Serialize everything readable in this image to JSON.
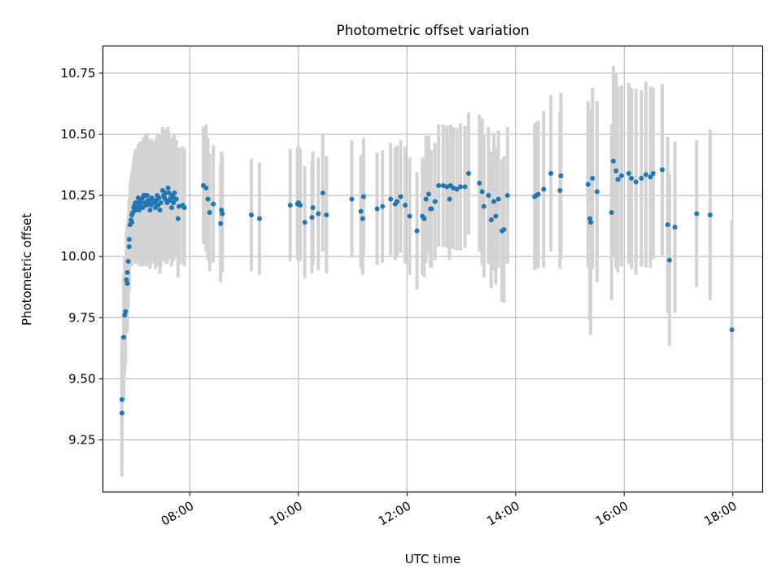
{
  "chart_data": {
    "type": "scatter",
    "title": "Photometric offset variation",
    "xlabel": "UTC time",
    "ylabel": "Photometric offset",
    "xlim": [
      "06:24",
      "18:33"
    ],
    "ylim": [
      9.037,
      10.861
    ],
    "x_ticks": [
      "08:00",
      "10:00",
      "12:00",
      "14:00",
      "16:00",
      "18:00"
    ],
    "y_ticks": [
      "9.25",
      "9.50",
      "9.75",
      "10.00",
      "10.25",
      "10.50",
      "10.75"
    ],
    "grid": true,
    "colors": {
      "marker": "#1f77b4",
      "errorbar": "#d3d3d3",
      "grid": "#b0b0b0"
    },
    "series": [
      {
        "x": [
          "06:45",
          "06:45",
          "06:47",
          "06:48",
          "06:49",
          "06:50",
          "06:51",
          "06:51",
          "06:52",
          "06:53",
          "06:53",
          "06:54",
          "06:55",
          "06:56",
          "06:56",
          "06:57",
          "06:58",
          "06:59",
          "07:00",
          "07:00",
          "07:01",
          "07:02",
          "07:03",
          "07:04",
          "07:04",
          "07:05",
          "07:06",
          "07:07",
          "07:08",
          "07:08",
          "07:09",
          "07:10",
          "07:11",
          "07:12",
          "07:13",
          "07:14",
          "07:15",
          "07:16",
          "07:17",
          "07:18",
          "07:19",
          "07:21",
          "07:22",
          "07:23",
          "07:24",
          "07:25",
          "07:26",
          "07:27",
          "07:28",
          "07:30",
          "07:31",
          "07:32",
          "07:33",
          "07:34",
          "07:35",
          "07:36",
          "07:37",
          "07:38",
          "07:39",
          "07:40",
          "07:41",
          "07:42",
          "07:42",
          "07:43",
          "07:45",
          "07:47",
          "07:48",
          "07:52",
          "07:54",
          "08:15",
          "08:18",
          "08:20",
          "08:22",
          "08:26",
          "08:34",
          "08:35",
          "08:36",
          "09:08",
          "09:17",
          "09:51",
          "10:00",
          "09:59",
          "10:02",
          "10:07",
          "10:15",
          "10:16",
          "10:22",
          "10:27",
          "10:31",
          "10:59",
          "11:09",
          "11:11",
          "11:12",
          "11:27",
          "11:33",
          "11:42",
          "11:47",
          "11:49",
          "11:53",
          "11:58",
          "12:03",
          "12:11",
          "12:17",
          "12:19",
          "12:21",
          "12:24",
          "12:26",
          "12:27",
          "12:31",
          "12:35",
          "12:40",
          "12:44",
          "12:47",
          "12:48",
          "12:51",
          "12:55",
          "12:59",
          "13:04",
          "13:08",
          "13:20",
          "13:23",
          "13:25",
          "13:30",
          "13:33",
          "13:36",
          "13:38",
          "13:41",
          "13:45",
          "13:47",
          "13:51",
          "14:21",
          "14:23",
          "14:25",
          "14:31",
          "14:39",
          "14:49",
          "14:50",
          "15:20",
          "15:22",
          "15:23",
          "15:25",
          "15:30",
          "15:46",
          "15:48",
          "15:51",
          "15:53",
          "15:57",
          "16:05",
          "16:08",
          "16:13",
          "16:19",
          "16:24",
          "16:29",
          "16:32",
          "16:42",
          "16:48",
          "16:50",
          "16:56",
          "17:20",
          "17:35",
          "17:59"
        ],
        "y": [
          9.415,
          9.36,
          9.67,
          9.76,
          9.775,
          9.905,
          9.89,
          9.935,
          9.98,
          10.04,
          10.07,
          10.13,
          10.15,
          10.17,
          10.14,
          10.18,
          10.2,
          10.21,
          10.19,
          10.22,
          10.2,
          10.22,
          10.24,
          10.21,
          10.19,
          10.23,
          10.2,
          10.22,
          10.24,
          10.2,
          10.25,
          10.22,
          10.25,
          10.21,
          10.25,
          10.23,
          10.22,
          10.19,
          10.21,
          10.24,
          10.23,
          10.22,
          10.2,
          10.23,
          10.25,
          10.21,
          10.24,
          10.19,
          10.22,
          10.27,
          10.25,
          10.24,
          10.26,
          10.23,
          10.22,
          10.28,
          10.26,
          10.23,
          10.24,
          10.2,
          10.25,
          10.22,
          10.24,
          10.26,
          10.235,
          10.155,
          10.205,
          10.21,
          10.2,
          10.29,
          10.28,
          10.235,
          10.18,
          10.215,
          10.135,
          10.19,
          10.175,
          10.17,
          10.155,
          10.21,
          10.22,
          10.215,
          10.21,
          10.14,
          10.16,
          10.2,
          10.175,
          10.26,
          10.17,
          10.235,
          10.185,
          10.155,
          10.245,
          10.195,
          10.205,
          10.235,
          10.215,
          10.225,
          10.245,
          10.21,
          10.165,
          10.105,
          10.165,
          10.155,
          10.235,
          10.255,
          10.195,
          10.195,
          10.225,
          10.29,
          10.29,
          10.285,
          10.235,
          10.29,
          10.28,
          10.275,
          10.285,
          10.285,
          10.34,
          10.3,
          10.265,
          10.205,
          10.25,
          10.15,
          10.225,
          10.165,
          10.235,
          10.105,
          10.11,
          10.25,
          10.245,
          10.25,
          10.255,
          10.275,
          10.34,
          10.27,
          10.33,
          10.295,
          10.155,
          10.14,
          10.32,
          10.265,
          10.18,
          10.39,
          10.35,
          10.315,
          10.33,
          10.34,
          10.32,
          10.305,
          10.32,
          10.335,
          10.325,
          10.34,
          10.355,
          10.13,
          9.985,
          10.12,
          10.175,
          10.17,
          9.7
        ],
        "err": [
          0.26,
          0.26,
          0.26,
          0.24,
          0.22,
          0.2,
          0.2,
          0.2,
          0.19,
          0.18,
          0.17,
          0.17,
          0.17,
          0.18,
          0.18,
          0.19,
          0.2,
          0.21,
          0.22,
          0.22,
          0.22,
          0.22,
          0.22,
          0.23,
          0.23,
          0.24,
          0.24,
          0.24,
          0.24,
          0.24,
          0.24,
          0.25,
          0.25,
          0.25,
          0.25,
          0.25,
          0.25,
          0.24,
          0.24,
          0.24,
          0.24,
          0.25,
          0.25,
          0.25,
          0.25,
          0.25,
          0.26,
          0.26,
          0.26,
          0.26,
          0.26,
          0.26,
          0.26,
          0.26,
          0.25,
          0.25,
          0.25,
          0.24,
          0.24,
          0.24,
          0.24,
          0.24,
          0.24,
          0.24,
          0.24,
          0.24,
          0.24,
          0.24,
          0.24,
          0.24,
          0.26,
          0.25,
          0.24,
          0.24,
          0.24,
          0.24,
          0.24,
          0.23,
          0.23,
          0.23,
          0.23,
          0.23,
          0.23,
          0.23,
          0.23,
          0.23,
          0.23,
          0.24,
          0.24,
          0.24,
          0.23,
          0.23,
          0.24,
          0.23,
          0.23,
          0.23,
          0.23,
          0.23,
          0.23,
          0.24,
          0.24,
          0.24,
          0.24,
          0.24,
          0.26,
          0.24,
          0.24,
          0.24,
          0.24,
          0.25,
          0.25,
          0.25,
          0.25,
          0.25,
          0.25,
          0.25,
          0.26,
          0.25,
          0.25,
          0.28,
          0.3,
          0.29,
          0.28,
          0.28,
          0.28,
          0.28,
          0.28,
          0.29,
          0.3,
          0.28,
          0.3,
          0.3,
          0.3,
          0.32,
          0.32,
          0.32,
          0.34,
          0.34,
          0.42,
          0.46,
          0.37,
          0.37,
          0.36,
          0.39,
          0.4,
          0.38,
          0.37,
          0.37,
          0.37,
          0.38,
          0.36,
          0.38,
          0.37,
          0.35,
          0.35,
          0.36,
          0.35,
          0.35,
          0.3,
          0.35,
          0.45
        ]
      }
    ]
  }
}
